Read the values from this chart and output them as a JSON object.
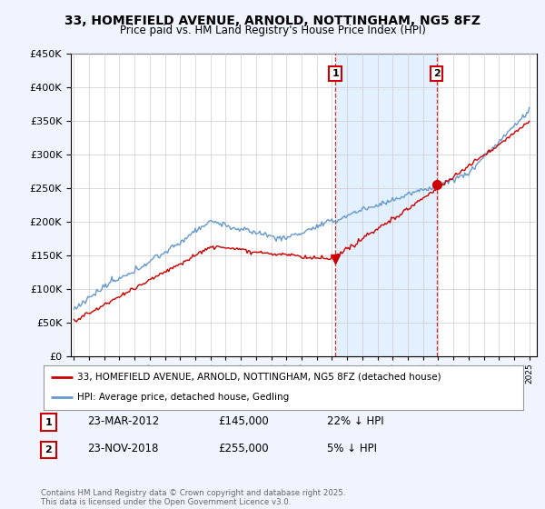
{
  "title": "33, HOMEFIELD AVENUE, ARNOLD, NOTTINGHAM, NG5 8FZ",
  "subtitle": "Price paid vs. HM Land Registry's House Price Index (HPI)",
  "ylabel_ticks": [
    0,
    50000,
    100000,
    150000,
    200000,
    250000,
    300000,
    350000,
    400000,
    450000
  ],
  "ylim": [
    0,
    450000
  ],
  "xmin": 1994.8,
  "xmax": 2025.5,
  "red_line_color": "#cc0000",
  "blue_line_color": "#6699cc",
  "blue_fill_color": "#ddeeff",
  "ann1_x": 2012.22,
  "ann1_y": 145000,
  "ann2_x": 2018.9,
  "ann2_y": 255000,
  "annotation1": {
    "label": "1",
    "date": "23-MAR-2012",
    "price": "£145,000",
    "hpi": "22% ↓ HPI"
  },
  "annotation2": {
    "label": "2",
    "date": "23-NOV-2018",
    "price": "£255,000",
    "hpi": "5% ↓ HPI"
  },
  "legend1": "33, HOMEFIELD AVENUE, ARNOLD, NOTTINGHAM, NG5 8FZ (detached house)",
  "legend2": "HPI: Average price, detached house, Gedling",
  "footnote": "Contains HM Land Registry data © Crown copyright and database right 2025.\nThis data is licensed under the Open Government Licence v3.0.",
  "background_color": "#f0f4ff",
  "plot_bg_color": "#ffffff",
  "grid_color": "#cccccc"
}
